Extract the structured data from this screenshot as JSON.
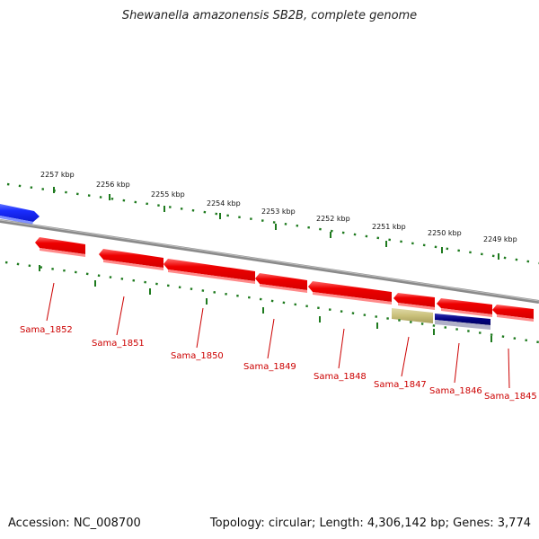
{
  "header": {
    "title": "Shewanella amazonensis SB2B, complete genome"
  },
  "footer": {
    "accession": "Accession: NC_008700",
    "summary": "Topology: circular; Length: 4,306,142 bp; Genes: 3,774"
  },
  "colors": {
    "gene_forward": "#ee0000",
    "gene_other_blue": "#1a2dff",
    "gene_khaki": "#c9c07a",
    "gene_navy": "#000080",
    "backbone": "#8a8a8a",
    "ruler": "#1e7a1e",
    "label": "#cc0000"
  },
  "ruler_labels": [
    "2257 kbp",
    "2256 kbp",
    "2255 kbp",
    "2254 kbp",
    "2253 kbp",
    "2252 kbp",
    "2251 kbp",
    "2250 kbp",
    "2249 kbp"
  ],
  "genes": [
    {
      "label": "Sama_1852"
    },
    {
      "label": "Sama_1851"
    },
    {
      "label": "Sama_1850"
    },
    {
      "label": "Sama_1849"
    },
    {
      "label": "Sama_1848"
    },
    {
      "label": "Sama_1847"
    },
    {
      "label": "Sama_1846"
    },
    {
      "label": "Sama_1845"
    }
  ]
}
